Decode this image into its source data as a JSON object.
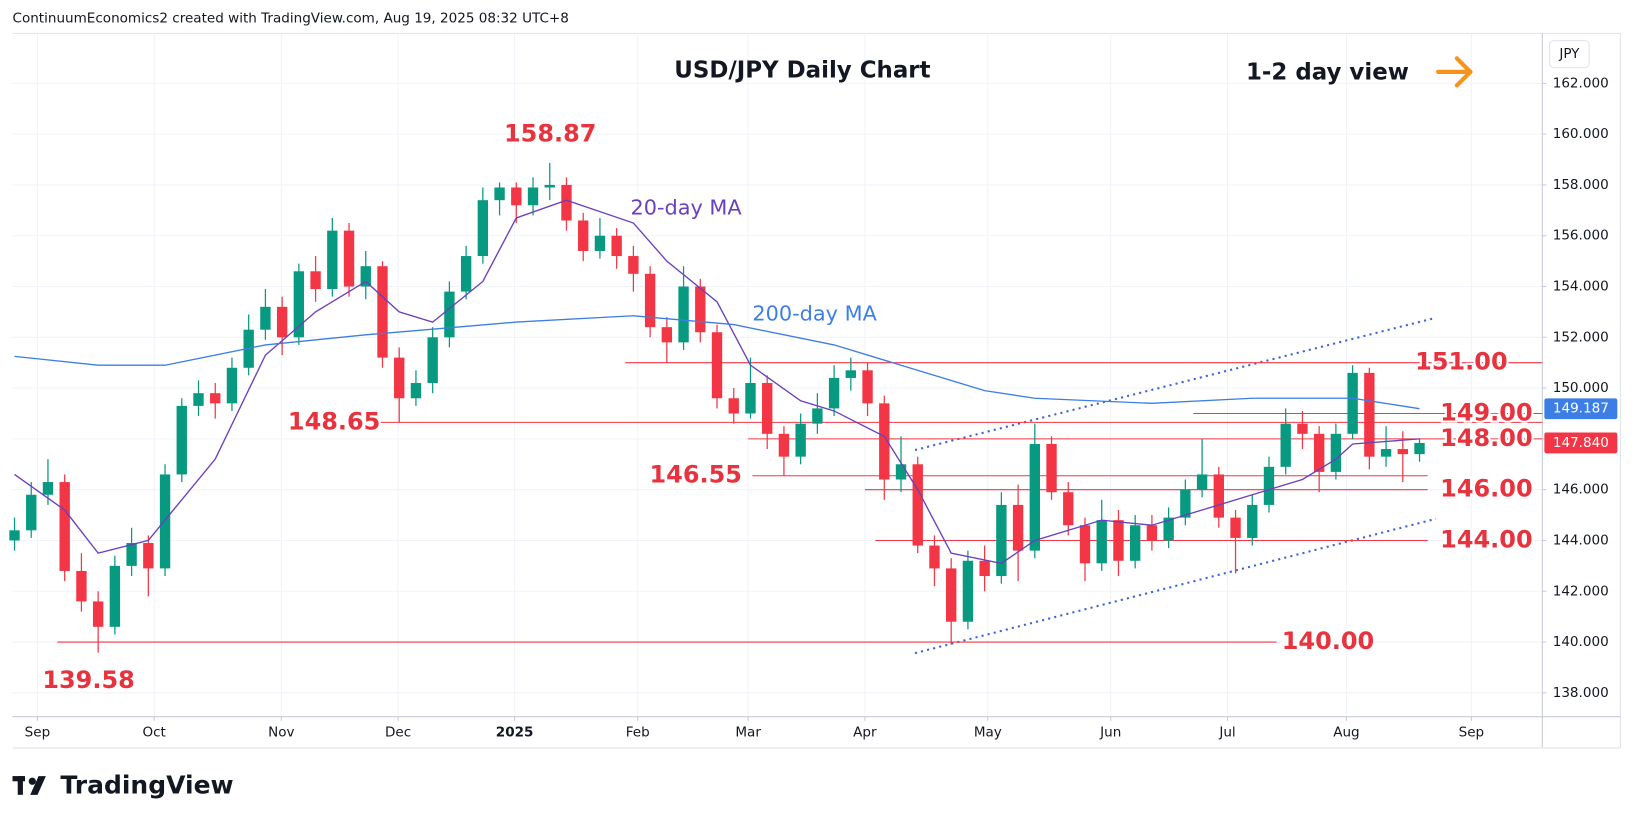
{
  "chart_data": {
    "type": "candlestick",
    "header": "ContinuumEconomics2 created with TradingView.com, Aug 19, 2025 08:32 UTC+8",
    "title": "USD/JPY Daily Chart",
    "subtitle": "1-2 day view",
    "currency": "JPY",
    "brand": "TradingView",
    "up_color": "#089981",
    "down_color": "#f23645",
    "xlim": [
      -0.12,
      91.34
    ],
    "ylim": [
      137.06,
      163.97
    ],
    "grid": true,
    "yticks": [
      {
        "value": 138,
        "label": "138.000"
      },
      {
        "value": 140,
        "label": "140.000"
      },
      {
        "value": 142,
        "label": "142.000"
      },
      {
        "value": 144,
        "label": "144.000"
      },
      {
        "value": 146,
        "label": "146.000"
      },
      {
        "value": 148,
        "label": "148.000"
      },
      {
        "value": 150,
        "label": "150.000"
      },
      {
        "value": 152,
        "label": "152.000"
      },
      {
        "value": 154,
        "label": "154.000"
      },
      {
        "value": 156,
        "label": "156.000"
      },
      {
        "value": 158,
        "label": "158.000"
      },
      {
        "value": 160,
        "label": "160.000"
      },
      {
        "value": 162,
        "label": "162.000"
      }
    ],
    "xticks": [
      {
        "value": 1.37,
        "label": "Sep"
      },
      {
        "value": 8.35,
        "label": "Oct"
      },
      {
        "value": 15.95,
        "label": "Nov"
      },
      {
        "value": 22.93,
        "label": "Dec"
      },
      {
        "value": 29.9,
        "label": "2025"
      },
      {
        "value": 37.26,
        "label": "Feb"
      },
      {
        "value": 43.86,
        "label": "Mar"
      },
      {
        "value": 50.84,
        "label": "Apr"
      },
      {
        "value": 58.19,
        "label": "May"
      },
      {
        "value": 65.54,
        "label": "Jun"
      },
      {
        "value": 72.52,
        "label": "Jul"
      },
      {
        "value": 79.63,
        "label": "Aug"
      },
      {
        "value": 87.1,
        "label": "Sep"
      }
    ],
    "candles": [
      [
        144.0,
        144.9,
        143.6,
        144.4
      ],
      [
        144.4,
        146.3,
        144.1,
        145.8
      ],
      [
        145.8,
        147.2,
        145.4,
        146.3
      ],
      [
        146.3,
        146.6,
        142.4,
        142.8
      ],
      [
        142.8,
        143.5,
        141.2,
        141.6
      ],
      [
        141.6,
        142.0,
        139.58,
        140.6
      ],
      [
        140.6,
        143.4,
        140.3,
        143.0
      ],
      [
        143.0,
        144.5,
        142.6,
        143.9
      ],
      [
        143.9,
        144.2,
        141.8,
        142.9
      ],
      [
        142.9,
        147.0,
        142.6,
        146.6
      ],
      [
        146.6,
        149.6,
        146.3,
        149.3
      ],
      [
        149.3,
        150.3,
        148.9,
        149.8
      ],
      [
        149.8,
        150.2,
        148.8,
        149.4
      ],
      [
        149.4,
        151.2,
        149.1,
        150.8
      ],
      [
        150.8,
        152.9,
        150.5,
        152.3
      ],
      [
        152.3,
        153.9,
        151.9,
        153.2
      ],
      [
        153.2,
        153.6,
        151.3,
        152.0
      ],
      [
        152.0,
        154.9,
        151.7,
        154.6
      ],
      [
        154.6,
        155.2,
        153.4,
        153.9
      ],
      [
        153.9,
        156.7,
        153.6,
        156.2
      ],
      [
        156.2,
        156.5,
        153.6,
        154.0
      ],
      [
        154.0,
        155.4,
        153.5,
        154.8
      ],
      [
        154.8,
        155.0,
        150.8,
        151.2
      ],
      [
        151.2,
        151.6,
        148.65,
        149.6
      ],
      [
        149.6,
        150.7,
        149.3,
        150.2
      ],
      [
        150.2,
        152.4,
        149.8,
        152.0
      ],
      [
        152.0,
        154.2,
        151.6,
        153.8
      ],
      [
        153.8,
        155.6,
        153.5,
        155.2
      ],
      [
        155.2,
        157.9,
        154.9,
        157.4
      ],
      [
        157.4,
        158.1,
        156.8,
        157.9
      ],
      [
        157.9,
        158.1,
        156.5,
        157.2
      ],
      [
        157.2,
        158.3,
        156.8,
        157.9
      ],
      [
        157.9,
        158.87,
        157.4,
        158.0
      ],
      [
        158.0,
        158.3,
        156.2,
        156.6
      ],
      [
        156.6,
        156.9,
        155.0,
        155.4
      ],
      [
        155.4,
        156.7,
        155.1,
        156.0
      ],
      [
        156.0,
        156.3,
        154.7,
        155.2
      ],
      [
        155.2,
        155.6,
        153.8,
        154.5
      ],
      [
        154.5,
        154.8,
        152.0,
        152.4
      ],
      [
        152.4,
        152.8,
        151.0,
        151.8
      ],
      [
        151.8,
        154.8,
        151.5,
        154.0
      ],
      [
        154.0,
        154.3,
        151.8,
        152.2
      ],
      [
        152.2,
        152.5,
        149.2,
        149.6
      ],
      [
        149.6,
        150.0,
        148.6,
        149.0
      ],
      [
        149.0,
        151.2,
        148.8,
        150.2
      ],
      [
        150.2,
        150.5,
        147.6,
        148.2
      ],
      [
        148.2,
        148.5,
        146.55,
        147.3
      ],
      [
        147.3,
        149.0,
        147.0,
        148.6
      ],
      [
        148.6,
        149.8,
        148.2,
        149.2
      ],
      [
        149.2,
        150.9,
        148.9,
        150.4
      ],
      [
        150.4,
        151.2,
        149.9,
        150.7
      ],
      [
        150.7,
        151.0,
        148.9,
        149.4
      ],
      [
        149.4,
        149.7,
        145.6,
        146.4
      ],
      [
        146.4,
        148.1,
        145.9,
        147.0
      ],
      [
        147.0,
        147.3,
        143.5,
        143.8
      ],
      [
        143.8,
        144.2,
        142.2,
        142.9
      ],
      [
        142.9,
        143.3,
        139.9,
        140.8
      ],
      [
        140.8,
        143.6,
        140.5,
        143.2
      ],
      [
        143.2,
        143.8,
        142.0,
        142.6
      ],
      [
        142.6,
        145.9,
        142.3,
        145.4
      ],
      [
        145.4,
        146.2,
        142.4,
        143.6
      ],
      [
        143.6,
        148.6,
        143.3,
        147.8
      ],
      [
        147.8,
        148.1,
        145.6,
        145.9
      ],
      [
        145.9,
        146.3,
        144.2,
        144.6
      ],
      [
        144.6,
        144.9,
        142.4,
        143.1
      ],
      [
        143.1,
        145.6,
        142.8,
        144.8
      ],
      [
        144.8,
        145.2,
        142.6,
        143.2
      ],
      [
        143.2,
        145.0,
        142.9,
        144.6
      ],
      [
        144.6,
        145.0,
        143.6,
        144.0
      ],
      [
        144.0,
        145.3,
        143.7,
        144.9
      ],
      [
        144.9,
        146.4,
        144.6,
        146.0
      ],
      [
        146.0,
        148.0,
        145.7,
        146.6
      ],
      [
        146.6,
        146.9,
        144.5,
        144.9
      ],
      [
        144.9,
        145.2,
        142.7,
        144.1
      ],
      [
        144.1,
        145.8,
        143.8,
        145.4
      ],
      [
        145.4,
        147.3,
        145.1,
        146.9
      ],
      [
        146.9,
        149.2,
        146.6,
        148.6
      ],
      [
        148.6,
        149.1,
        147.6,
        148.2
      ],
      [
        148.2,
        148.5,
        145.9,
        146.7
      ],
      [
        146.7,
        148.6,
        146.4,
        148.2
      ],
      [
        148.2,
        150.9,
        148.0,
        150.6
      ],
      [
        150.6,
        150.8,
        146.8,
        147.3
      ],
      [
        147.3,
        148.5,
        146.9,
        147.6
      ],
      [
        147.6,
        148.3,
        146.3,
        147.4
      ],
      [
        147.4,
        148.0,
        147.1,
        147.84
      ]
    ],
    "series": [
      {
        "name": "20-day MA",
        "color": "#6a3fc0",
        "x": [
          0,
          3,
          5,
          8,
          12,
          15,
          18,
          21,
          23,
          25,
          28,
          30,
          33,
          37,
          39,
          42,
          44,
          47,
          49,
          52,
          54,
          56,
          59,
          61,
          65,
          68,
          71,
          74,
          77,
          79,
          80,
          84
        ],
        "values": [
          146.6,
          145.2,
          143.5,
          144,
          147.2,
          151.3,
          153,
          154.2,
          153,
          152.6,
          154.2,
          156.7,
          157.4,
          156.5,
          155,
          153.4,
          150.9,
          149.5,
          149.1,
          148.1,
          146,
          143.5,
          143.1,
          144,
          144.8,
          144.6,
          145.2,
          145.8,
          146.4,
          147.2,
          147.8,
          148
        ]
      },
      {
        "name": "200-day MA",
        "color": "#3d7ee6",
        "x": [
          0,
          5,
          9,
          15,
          21,
          30,
          37,
          43,
          49,
          53,
          58,
          61,
          68,
          74,
          80,
          84
        ],
        "values": [
          151.25,
          150.9,
          150.9,
          151.7,
          152.1,
          152.6,
          152.85,
          152.5,
          151.7,
          150.9,
          149.9,
          149.6,
          149.4,
          149.6,
          149.6,
          149.19
        ]
      }
    ],
    "levels": [
      {
        "value": 151,
        "label": "151.00"
      },
      {
        "value": 149,
        "label": "149.00"
      },
      {
        "value": 148.65,
        "label": "148.65"
      },
      {
        "value": 148,
        "label": "148.00"
      },
      {
        "value": 146.55,
        "label": "146.55"
      },
      {
        "value": 146,
        "label": "146.00"
      },
      {
        "value": 144,
        "label": "144.00"
      },
      {
        "value": 140,
        "label": "140.00"
      }
    ],
    "annotations": [
      {
        "value": 158.87,
        "label": "158.87"
      },
      {
        "value": 139.58,
        "label": "139.58"
      }
    ],
    "ma200_last": {
      "value": 149.187,
      "label": "149.187"
    },
    "last_price": {
      "value": 147.84,
      "label": "147.840"
    }
  }
}
